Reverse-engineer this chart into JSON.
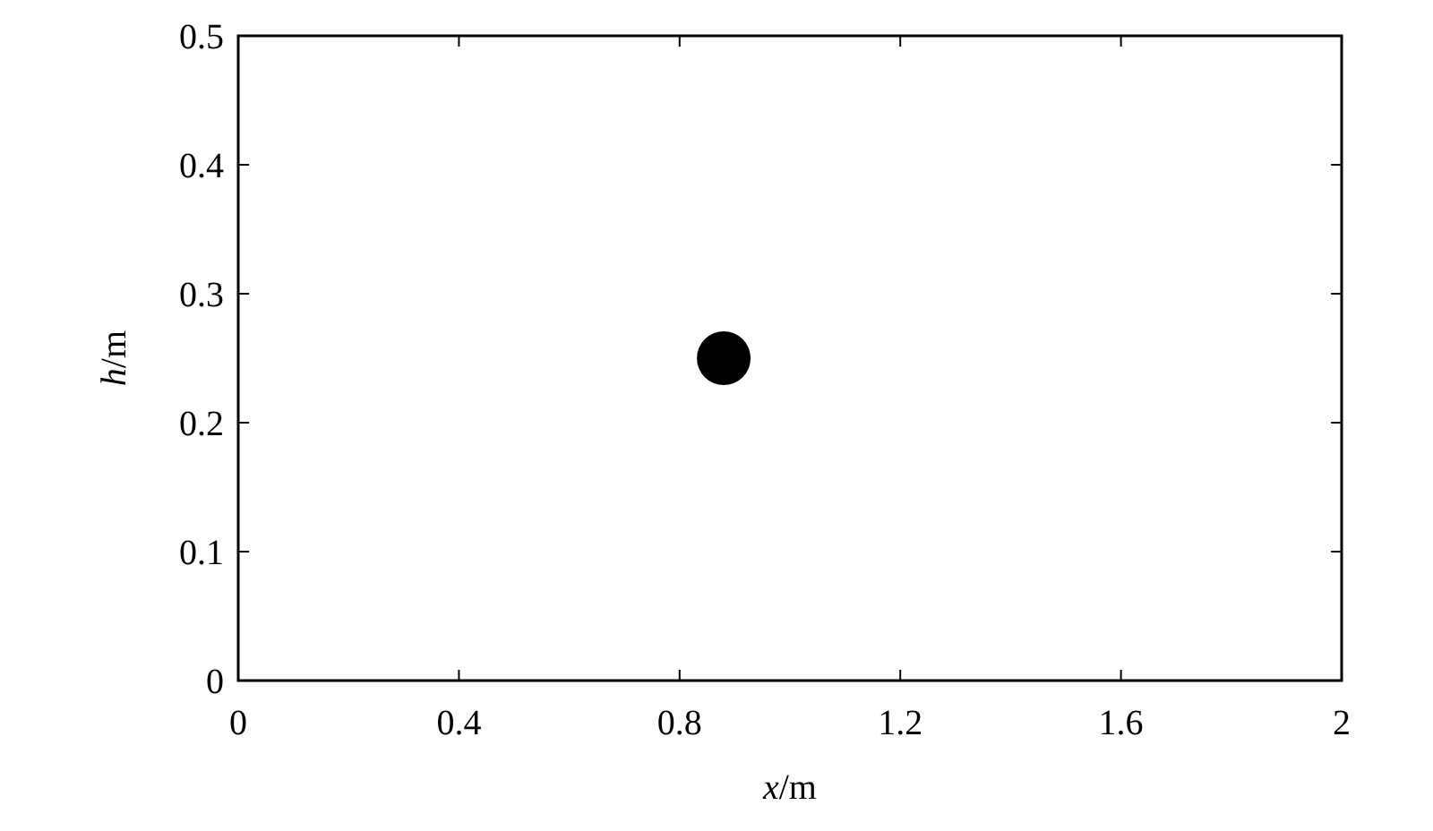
{
  "chart_data": {
    "type": "scatter",
    "x": [
      0.88
    ],
    "values": [
      0.25
    ],
    "color": "#000000",
    "marker": "circle",
    "xlabel": "x/m",
    "ylabel": "h/m",
    "xlim": [
      0,
      2
    ],
    "ylim": [
      0,
      0.5
    ],
    "xticks": [
      0,
      0.4,
      0.8,
      1.2,
      1.6,
      2
    ],
    "yticks": [
      0,
      0.1,
      0.2,
      0.3,
      0.4,
      0.5
    ],
    "grid": false
  }
}
